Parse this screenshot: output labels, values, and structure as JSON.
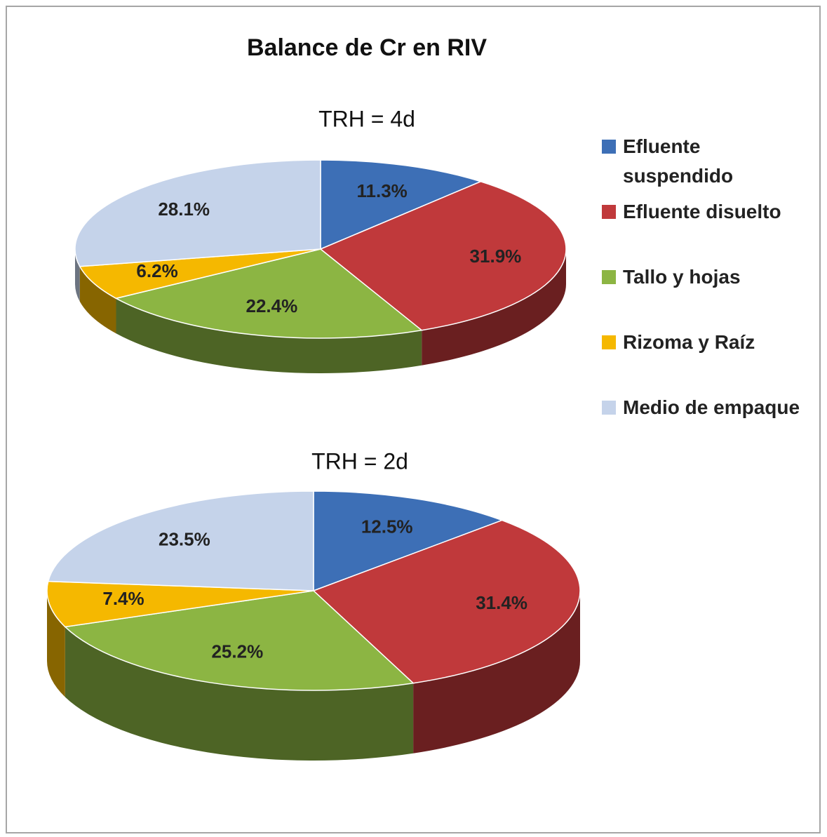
{
  "title": "Balance de Cr en RIV",
  "categories": [
    "Efluente suspendido",
    "Efluente disuelto",
    "Tallo y hojas",
    "Rizoma y Raíz",
    "Medio de empaque"
  ],
  "colors": [
    "#3d6fb6",
    "#c0393b",
    "#8cb543",
    "#f5b800",
    "#c5d3ea"
  ],
  "chart_data": [
    {
      "type": "pie",
      "subtitle": "TRH = 4d",
      "values": [
        11.3,
        31.9,
        22.4,
        6.2,
        28.1
      ],
      "value_labels": [
        "11.3%",
        "31.9%",
        "22.4%",
        "6.2%",
        "28.1%"
      ]
    },
    {
      "type": "pie",
      "subtitle": "TRH = 2d",
      "values": [
        12.5,
        31.4,
        25.2,
        7.4,
        23.5
      ],
      "value_labels": [
        "12.5%",
        "31.4%",
        "25.2%",
        "7.4%",
        "23.5%"
      ]
    }
  ]
}
